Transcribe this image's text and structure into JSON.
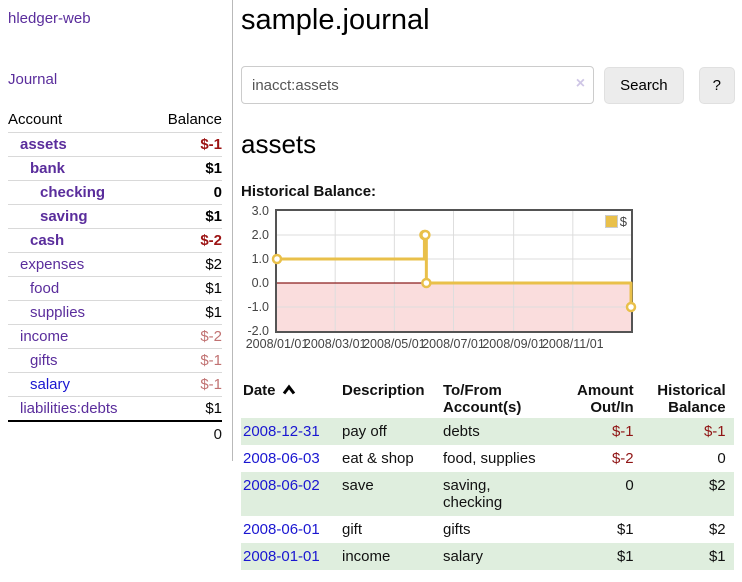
{
  "app": {
    "title": "hledger-web"
  },
  "colors": {
    "link_purple": "#5a2d9c",
    "link_blue": "#1a16d1",
    "negative_strong": "#9c1313",
    "negative_muted": "#c17272",
    "negative_table": "#8f1414",
    "row_stripe_green": "#dfeede",
    "series_gold": "#e9c04a"
  },
  "sidebar": {
    "journal_link": "Journal",
    "accounts_table": {
      "headers": [
        "Account",
        "Balance"
      ],
      "rows": [
        {
          "account": "assets",
          "indent": 1,
          "bold": true,
          "balance": "$-1",
          "balance_style": "neg-strong"
        },
        {
          "account": "bank",
          "indent": 2,
          "bold": true,
          "balance": "$1",
          "balance_style": "pos"
        },
        {
          "account": "checking",
          "indent": 3,
          "bold": true,
          "balance": "0",
          "balance_style": "pos"
        },
        {
          "account": "saving",
          "indent": 3,
          "bold": true,
          "balance": "$1",
          "balance_style": "pos"
        },
        {
          "account": "cash",
          "indent": 2,
          "bold": true,
          "balance": "$-2",
          "balance_style": "neg-strong"
        },
        {
          "account": "expenses",
          "indent": 1,
          "bold": false,
          "balance": "$2",
          "balance_style": "pos"
        },
        {
          "account": "food",
          "indent": 2,
          "bold": false,
          "balance": "$1",
          "balance_style": "pos"
        },
        {
          "account": "supplies",
          "indent": 2,
          "bold": false,
          "balance": "$1",
          "balance_style": "pos"
        },
        {
          "account": "income",
          "indent": 1,
          "bold": false,
          "balance": "$-2",
          "balance_style": "neg-muted"
        },
        {
          "account": "gifts",
          "indent": 2,
          "bold": false,
          "balance": "$-1",
          "balance_style": "neg-muted"
        },
        {
          "account": "salary",
          "indent": 2,
          "bold": false,
          "balance": "$-1",
          "balance_style": "neg-muted",
          "blue": true
        },
        {
          "account": "liabilities:debts",
          "indent": 1,
          "bold": false,
          "balance": "$1",
          "balance_style": "pos"
        }
      ],
      "total": "0"
    }
  },
  "main": {
    "title": "sample.journal",
    "search": {
      "value": "inacct:assets",
      "clear_icon": "×",
      "button_label": "Search",
      "help_label": "?"
    },
    "account_heading": "assets",
    "chart_label": "Historical Balance:"
  },
  "chart_data": {
    "type": "line",
    "title": "Historical Balance",
    "step": true,
    "x_start": "2008-01-01",
    "x_end": "2008-12-31",
    "ylim": [
      -2,
      3
    ],
    "yticks": [
      3.0,
      2.0,
      1.0,
      0.0,
      -1.0,
      -2.0
    ],
    "xticks": [
      "2008/01/01",
      "2008/03/01",
      "2008/05/01",
      "2008/07/01",
      "2008/09/01",
      "2008/11/01"
    ],
    "grid": true,
    "negative_region_fill": "#fadddd",
    "zero_line_color": "#8b1e1e",
    "legend": {
      "position": "top-right",
      "label": "$"
    },
    "series": [
      {
        "name": "$",
        "color": "#e9c04a",
        "points": [
          {
            "date": "2008-01-01",
            "value": 1
          },
          {
            "date": "2008-06-01",
            "value": 2
          },
          {
            "date": "2008-06-02",
            "value": 2
          },
          {
            "date": "2008-06-03",
            "value": 0
          },
          {
            "date": "2008-12-31",
            "value": -1
          }
        ]
      }
    ]
  },
  "register_table": {
    "headers": [
      {
        "key": "date",
        "label": "Date",
        "sort": "asc"
      },
      {
        "key": "description",
        "label": "Description"
      },
      {
        "key": "accounts",
        "label": "To/From Account(s)"
      },
      {
        "key": "amount",
        "label": "Amount Out/In",
        "align": "right"
      },
      {
        "key": "balance",
        "label": "Historical Balance",
        "align": "right"
      }
    ],
    "rows": [
      {
        "date": "2008-12-31",
        "description": "pay off",
        "accounts": "debts",
        "amount": "$-1",
        "amount_neg": true,
        "balance": "$-1",
        "balance_neg": true
      },
      {
        "date": "2008-06-03",
        "description": "eat & shop",
        "accounts": "food, supplies",
        "amount": "$-2",
        "amount_neg": true,
        "balance": "0",
        "balance_neg": false
      },
      {
        "date": "2008-06-02",
        "description": "save",
        "accounts": "saving,\nchecking",
        "amount": "0",
        "amount_neg": false,
        "balance": "$2",
        "balance_neg": false
      },
      {
        "date": "2008-06-01",
        "description": "gift",
        "accounts": "gifts",
        "amount": "$1",
        "amount_neg": false,
        "balance": "$2",
        "balance_neg": false
      },
      {
        "date": "2008-01-01",
        "description": "income",
        "accounts": "salary",
        "amount": "$1",
        "amount_neg": false,
        "balance": "$1",
        "balance_neg": false
      }
    ]
  }
}
